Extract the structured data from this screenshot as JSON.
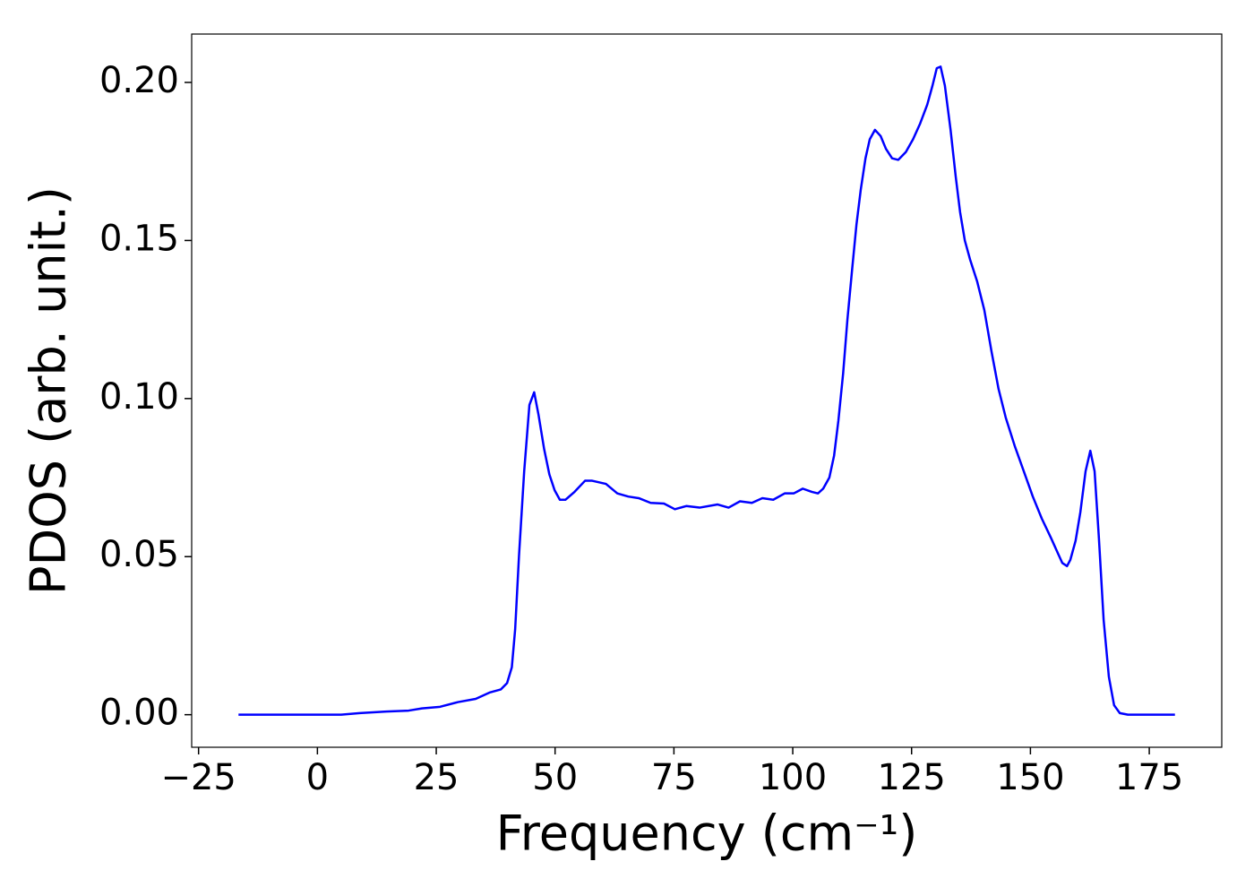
{
  "chart_data": {
    "type": "line",
    "xlabel": "Frequency (cm⁻¹)",
    "ylabel": "PDOS (arb. unit.)",
    "xlim": [
      -26.45,
      190.25
    ],
    "ylim": [
      -0.0103,
      0.2153
    ],
    "xticks": [
      {
        "value": -25,
        "label": "−25"
      },
      0,
      25,
      50,
      75,
      100,
      125,
      150,
      175
    ],
    "yticks": [
      {
        "value": 0,
        "label": "0.00"
      },
      {
        "value": 0.05,
        "label": "0.05"
      },
      {
        "value": 0.1,
        "label": "0.10"
      },
      {
        "value": 0.15,
        "label": "0.15"
      },
      {
        "value": 0.2,
        "label": "0.20"
      }
    ],
    "grid": false,
    "x": [
      -16.6,
      5,
      8.9,
      14.5,
      19.2,
      22,
      25.8,
      29.6,
      33.3,
      36.2,
      38.6,
      39.9,
      40.9,
      41.6,
      42.4,
      43.5,
      44.6,
      45.6,
      46.5,
      47.7,
      48.8,
      49.9,
      51,
      52.2,
      54.1,
      56.3,
      57.8,
      60.7,
      63.1,
      65.4,
      67.6,
      70.1,
      72.9,
      75.2,
      77.6,
      80.4,
      84.2,
      86.5,
      88.9,
      91.4,
      93.6,
      95.9,
      98.3,
      100.2,
      102.1,
      104,
      105.3,
      106.4,
      107.7,
      108.7,
      109.6,
      110.6,
      111.5,
      112.5,
      113.4,
      114.3,
      115.3,
      116.2,
      117.3,
      118.5,
      119.6,
      120.9,
      122.2,
      123.8,
      125.3,
      126.8,
      128.3,
      129.4,
      130.3,
      131.1,
      132,
      133.2,
      134.3,
      135.2,
      136.2,
      137.3,
      138.8,
      140.3,
      141.8,
      143.3,
      144.8,
      146.7,
      148.6,
      150.5,
      152.4,
      154.3,
      155.8,
      156.7,
      157.7,
      158.4,
      159.5,
      160.5,
      161.6,
      162.6,
      163.5,
      164.4,
      165.4,
      166.5,
      167.6,
      168.8,
      170.5,
      180.4
    ],
    "series": [
      {
        "color": "#0000ff",
        "values": [
          0,
          0,
          0.0005,
          0.001,
          0.0013,
          0.002,
          0.0025,
          0.004,
          0.005,
          0.007,
          0.008,
          0.01,
          0.015,
          0.027,
          0.05,
          0.077,
          0.098,
          0.102,
          0.095,
          0.084,
          0.076,
          0.071,
          0.068,
          0.068,
          0.0705,
          0.074,
          0.074,
          0.073,
          0.07,
          0.069,
          0.0685,
          0.067,
          0.0668,
          0.065,
          0.066,
          0.0655,
          0.0665,
          0.0655,
          0.0675,
          0.067,
          0.0685,
          0.068,
          0.07,
          0.07,
          0.0715,
          0.0705,
          0.07,
          0.0715,
          0.075,
          0.082,
          0.093,
          0.108,
          0.125,
          0.141,
          0.155,
          0.166,
          0.176,
          0.182,
          0.185,
          0.183,
          0.179,
          0.176,
          0.1755,
          0.178,
          0.182,
          0.187,
          0.193,
          0.199,
          0.2045,
          0.205,
          0.199,
          0.185,
          0.17,
          0.159,
          0.15,
          0.144,
          0.137,
          0.128,
          0.115,
          0.103,
          0.094,
          0.085,
          0.077,
          0.069,
          0.062,
          0.056,
          0.051,
          0.048,
          0.047,
          0.049,
          0.055,
          0.064,
          0.077,
          0.0835,
          0.077,
          0.056,
          0.03,
          0.012,
          0.003,
          0.0005,
          0,
          0
        ]
      }
    ]
  }
}
